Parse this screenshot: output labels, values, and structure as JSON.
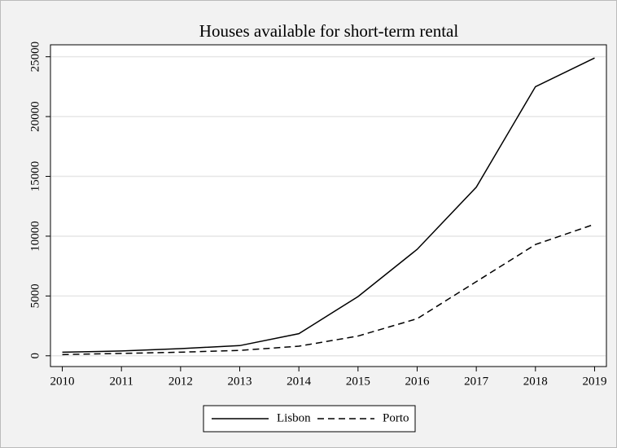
{
  "chart_data": {
    "type": "line",
    "title": "Houses available for short-term rental",
    "x": [
      2010,
      2011,
      2012,
      2013,
      2014,
      2015,
      2016,
      2017,
      2018,
      2019
    ],
    "series": [
      {
        "name": "Lisbon",
        "color": "#000000",
        "style": "solid",
        "values": [
          300,
          400,
          600,
          850,
          1850,
          4950,
          8900,
          14100,
          22500,
          24900
        ]
      },
      {
        "name": "Porto",
        "color": "#000000",
        "style": "dashed",
        "values": [
          100,
          200,
          300,
          450,
          800,
          1650,
          3100,
          6200,
          9300,
          11000
        ]
      }
    ],
    "xlim": [
      2009.8,
      2019.2
    ],
    "xticks": [
      2010,
      2011,
      2012,
      2013,
      2014,
      2015,
      2016,
      2017,
      2018,
      2019
    ],
    "ylim": [
      -900,
      26000
    ],
    "yticks": [
      0,
      5000,
      10000,
      15000,
      20000,
      25000
    ],
    "grid": true,
    "legend": "bottom"
  }
}
